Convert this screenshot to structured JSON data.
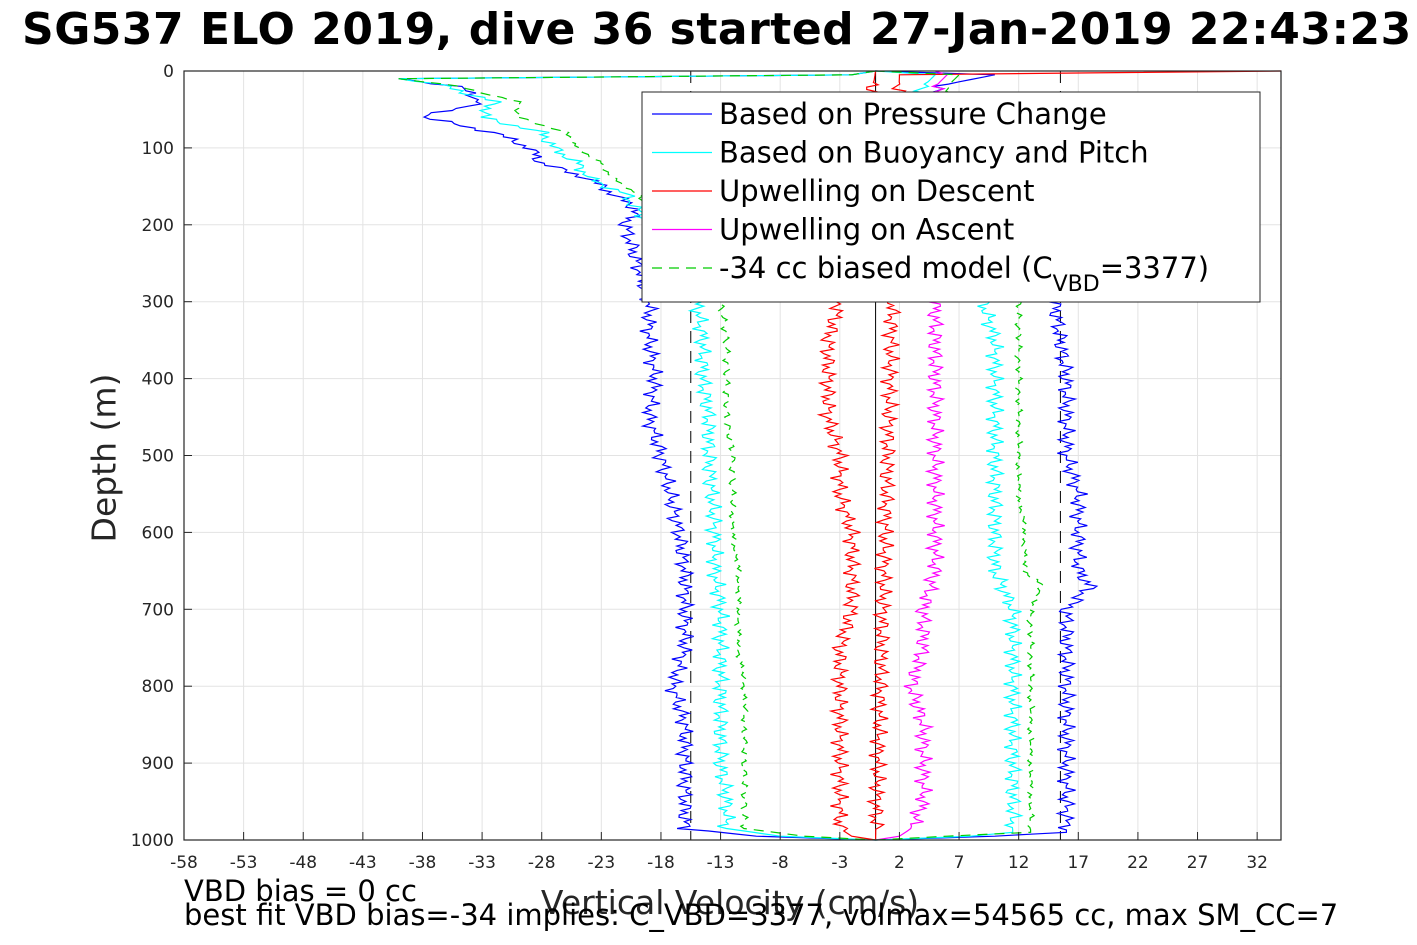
{
  "title": "SG537 ELO 2019, dive 36 started 27-Jan-2019 22:43:23",
  "chart_data": {
    "type": "line",
    "xlabel": "Vertical Velocity (cm/s)",
    "ylabel": "Depth (m)",
    "xlim": [
      -58,
      34
    ],
    "ylim": [
      0,
      1000
    ],
    "y_reversed": true,
    "xticks": [
      -58,
      -53,
      -48,
      -43,
      -38,
      -33,
      -28,
      -23,
      -18,
      -13,
      -8,
      -3,
      2,
      7,
      12,
      17,
      22,
      27,
      32
    ],
    "yticks": [
      0,
      100,
      200,
      300,
      400,
      500,
      600,
      700,
      800,
      900,
      1000
    ],
    "grid": true,
    "legend_position": "top-right",
    "vertical_reference_lines": [
      {
        "x": 0,
        "style": "solid",
        "color": "#000000"
      },
      {
        "x": -15.5,
        "style": "dashed",
        "color": "#000000"
      },
      {
        "x": 15.5,
        "style": "dashed",
        "color": "#000000"
      }
    ],
    "series": [
      {
        "name": "Based on Pressure Change",
        "color": "#0000ff",
        "style": "solid",
        "descent": [
          [
            0,
            0
          ],
          [
            5,
            -2
          ],
          [
            10,
            -40
          ],
          [
            20,
            -35
          ],
          [
            40,
            -33
          ],
          [
            60,
            -38
          ],
          [
            80,
            -32
          ],
          [
            100,
            -29
          ],
          [
            120,
            -28
          ],
          [
            140,
            -24
          ],
          [
            160,
            -22
          ],
          [
            180,
            -20
          ],
          [
            200,
            -21
          ],
          [
            250,
            -20
          ],
          [
            300,
            -19
          ],
          [
            350,
            -19
          ],
          [
            400,
            -18.5
          ],
          [
            450,
            -19
          ],
          [
            500,
            -18
          ],
          [
            600,
            -16.5
          ],
          [
            650,
            -16
          ],
          [
            700,
            -16
          ],
          [
            750,
            -16
          ],
          [
            800,
            -17
          ],
          [
            850,
            -16
          ],
          [
            900,
            -16
          ],
          [
            950,
            -16
          ],
          [
            985,
            -16
          ],
          [
            995,
            -10
          ],
          [
            1000,
            0
          ]
        ],
        "ascent": [
          [
            1000,
            0
          ],
          [
            995,
            10
          ],
          [
            990,
            16
          ],
          [
            950,
            16
          ],
          [
            900,
            16
          ],
          [
            850,
            16
          ],
          [
            800,
            16
          ],
          [
            750,
            16
          ],
          [
            700,
            16
          ],
          [
            670,
            18
          ],
          [
            650,
            17
          ],
          [
            600,
            17
          ],
          [
            550,
            17
          ],
          [
            500,
            16
          ],
          [
            450,
            16
          ],
          [
            400,
            16
          ],
          [
            350,
            15.5
          ],
          [
            300,
            15
          ],
          [
            250,
            14
          ],
          [
            200,
            12
          ],
          [
            150,
            10
          ],
          [
            100,
            7
          ],
          [
            50,
            5
          ],
          [
            20,
            5
          ],
          [
            5,
            10
          ],
          [
            0,
            0
          ]
        ]
      },
      {
        "name": "Based on Buoyancy and Pitch",
        "color": "#00ffff",
        "style": "solid",
        "descent": [
          [
            0,
            0
          ],
          [
            5,
            -2
          ],
          [
            10,
            -40
          ],
          [
            20,
            -36
          ],
          [
            40,
            -32
          ],
          [
            60,
            -33
          ],
          [
            80,
            -28
          ],
          [
            100,
            -27
          ],
          [
            120,
            -25
          ],
          [
            140,
            -24
          ],
          [
            160,
            -21
          ],
          [
            180,
            -20
          ],
          [
            200,
            -19
          ],
          [
            250,
            -18
          ],
          [
            300,
            -15
          ],
          [
            350,
            -14.5
          ],
          [
            400,
            -14.5
          ],
          [
            450,
            -14
          ],
          [
            500,
            -14
          ],
          [
            600,
            -13.5
          ],
          [
            650,
            -13.5
          ],
          [
            700,
            -13
          ],
          [
            750,
            -13
          ],
          [
            800,
            -13
          ],
          [
            850,
            -13
          ],
          [
            900,
            -13
          ],
          [
            950,
            -12.5
          ],
          [
            985,
            -12.5
          ],
          [
            995,
            -8
          ],
          [
            1000,
            0
          ]
        ],
        "ascent": [
          [
            1000,
            0
          ],
          [
            995,
            8
          ],
          [
            990,
            11.5
          ],
          [
            950,
            11.5
          ],
          [
            900,
            11.5
          ],
          [
            850,
            11.5
          ],
          [
            800,
            11.5
          ],
          [
            750,
            11.5
          ],
          [
            700,
            11.5
          ],
          [
            650,
            10
          ],
          [
            600,
            10
          ],
          [
            550,
            10
          ],
          [
            500,
            10
          ],
          [
            450,
            10
          ],
          [
            400,
            10
          ],
          [
            350,
            10
          ],
          [
            300,
            9
          ],
          [
            250,
            8
          ],
          [
            200,
            7
          ],
          [
            150,
            6
          ],
          [
            100,
            5
          ],
          [
            50,
            4
          ],
          [
            20,
            4
          ],
          [
            5,
            5
          ],
          [
            0,
            0
          ]
        ]
      },
      {
        "name": "Upwelling on Descent",
        "color": "#ff0000",
        "style": "solid",
        "descent": [
          [
            0,
            0
          ],
          [
            300,
            -3
          ],
          [
            350,
            -4
          ],
          [
            400,
            -4
          ],
          [
            450,
            -4
          ],
          [
            500,
            -3
          ],
          [
            550,
            -3
          ],
          [
            600,
            -2
          ],
          [
            650,
            -2
          ],
          [
            700,
            -2
          ],
          [
            750,
            -3
          ],
          [
            800,
            -3
          ],
          [
            850,
            -3
          ],
          [
            900,
            -3
          ],
          [
            950,
            -3
          ],
          [
            985,
            -3
          ],
          [
            995,
            -2
          ],
          [
            1000,
            0
          ]
        ],
        "ascent": [
          [
            1000,
            0
          ],
          [
            995,
            0
          ],
          [
            5,
            2
          ],
          [
            0,
            34
          ]
        ]
      },
      {
        "name": "Upwelling on Ascent",
        "color": "#ff00ff",
        "style": "solid",
        "descent": [],
        "ascent": [
          [
            1000,
            0
          ],
          [
            995,
            2
          ],
          [
            985,
            3
          ],
          [
            950,
            4
          ],
          [
            900,
            4
          ],
          [
            850,
            4
          ],
          [
            800,
            3
          ],
          [
            750,
            4
          ],
          [
            700,
            4
          ],
          [
            650,
            5
          ],
          [
            600,
            5
          ],
          [
            550,
            5
          ],
          [
            500,
            5
          ],
          [
            450,
            5
          ],
          [
            400,
            5
          ],
          [
            350,
            5
          ],
          [
            300,
            5
          ],
          [
            250,
            5
          ],
          [
            200,
            5
          ],
          [
            150,
            5
          ],
          [
            100,
            5
          ],
          [
            50,
            5
          ],
          [
            20,
            5
          ],
          [
            5,
            6
          ],
          [
            0,
            5
          ]
        ]
      },
      {
        "name": "-34 cc biased model (C",
        "name_subscript": "VBD",
        "name_suffix": "=3377)",
        "color": "#00cc00",
        "style": "dashed",
        "descent": [
          [
            0,
            0
          ],
          [
            5,
            -2
          ],
          [
            10,
            -40
          ],
          [
            20,
            -35
          ],
          [
            40,
            -30
          ],
          [
            60,
            -30
          ],
          [
            80,
            -26
          ],
          [
            100,
            -25
          ],
          [
            120,
            -23
          ],
          [
            140,
            -22
          ],
          [
            160,
            -20
          ],
          [
            180,
            -19
          ],
          [
            200,
            -18
          ],
          [
            250,
            -16
          ],
          [
            300,
            -13
          ],
          [
            350,
            -12.5
          ],
          [
            400,
            -12.5
          ],
          [
            450,
            -12.5
          ],
          [
            500,
            -12
          ],
          [
            600,
            -12
          ],
          [
            650,
            -11.5
          ],
          [
            700,
            -11.5
          ],
          [
            750,
            -11.5
          ],
          [
            800,
            -11
          ],
          [
            850,
            -11
          ],
          [
            900,
            -11
          ],
          [
            950,
            -11
          ],
          [
            985,
            -11
          ],
          [
            995,
            -6
          ],
          [
            1000,
            0
          ]
        ],
        "ascent": [
          [
            1000,
            0
          ],
          [
            995,
            6
          ],
          [
            990,
            13
          ],
          [
            950,
            13
          ],
          [
            900,
            13
          ],
          [
            850,
            13
          ],
          [
            800,
            13
          ],
          [
            750,
            13
          ],
          [
            700,
            13
          ],
          [
            670,
            14
          ],
          [
            650,
            12.5
          ],
          [
            600,
            12.5
          ],
          [
            550,
            12
          ],
          [
            500,
            12
          ],
          [
            450,
            12
          ],
          [
            400,
            12
          ],
          [
            350,
            12
          ],
          [
            300,
            12
          ],
          [
            250,
            11
          ],
          [
            200,
            10
          ],
          [
            150,
            9
          ],
          [
            100,
            8
          ],
          [
            50,
            7
          ],
          [
            20,
            6
          ],
          [
            5,
            7
          ],
          [
            0,
            0
          ]
        ]
      }
    ]
  },
  "footer": {
    "line1": "VBD bias = 0 cc",
    "line2": "best fit VBD bias=-34 implies: C_VBD=3377, volmax=54565 cc, max SM_CC=7"
  }
}
